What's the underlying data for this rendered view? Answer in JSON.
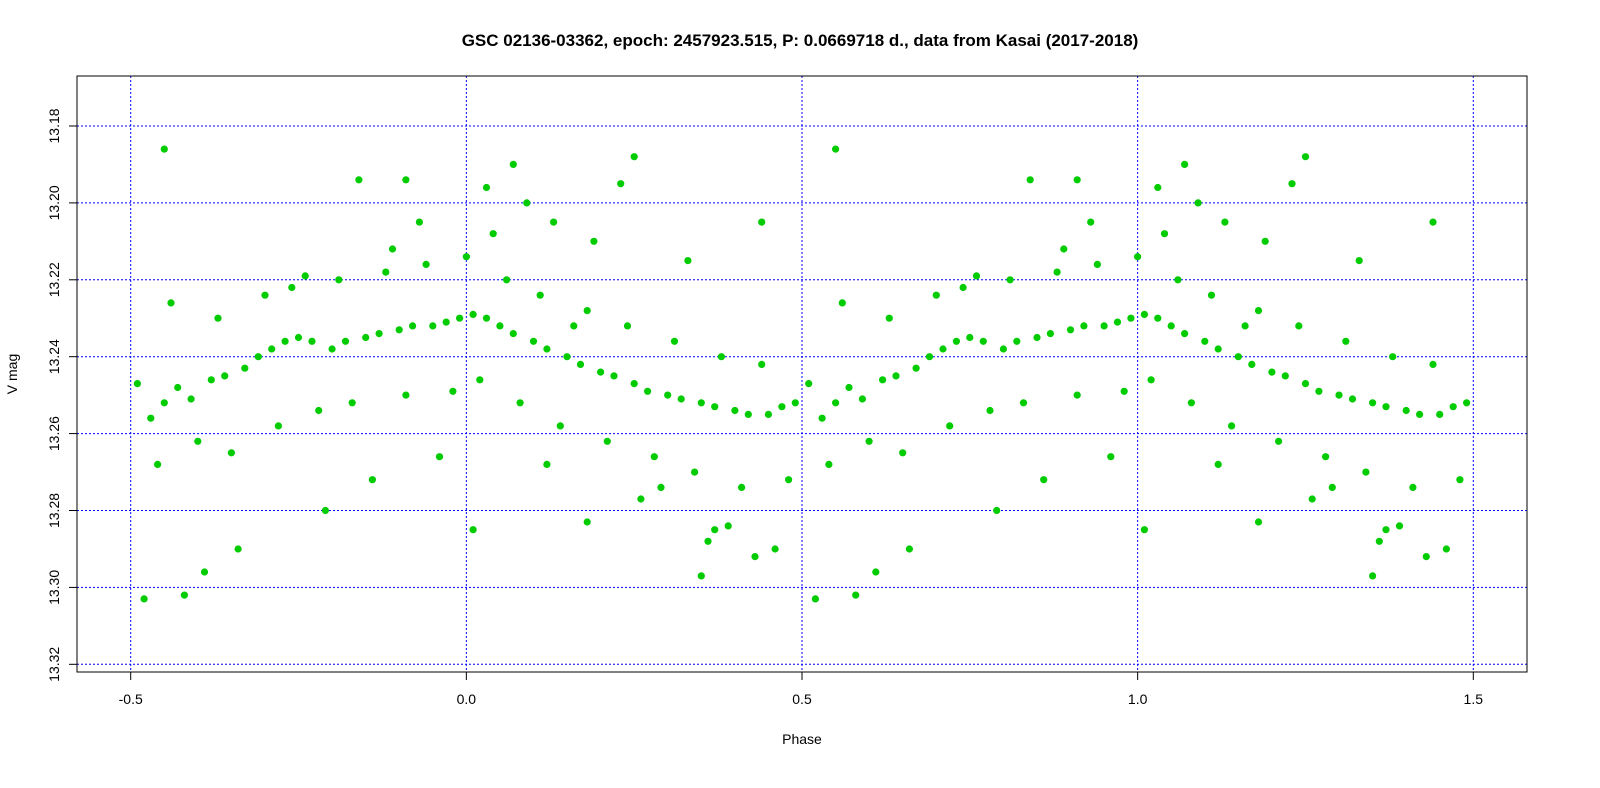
{
  "chart_data": {
    "type": "scatter",
    "title": "GSC 02136-03362, epoch: 2457923.515, P: 0.0669718 d., data from Kasai (2017-2018)",
    "xlabel": "Phase",
    "ylabel": "V mag",
    "xlim": [
      -0.58,
      1.58
    ],
    "ylim": [
      13.322,
      13.167
    ],
    "y_inverted": true,
    "x_ticks": [
      "-0.5",
      "0.0",
      "0.5",
      "1.0",
      "1.5"
    ],
    "x_tick_values": [
      -0.5,
      0.0,
      0.5,
      1.0,
      1.5
    ],
    "y_ticks": [
      "13.18",
      "13.20",
      "13.22",
      "13.24",
      "13.26",
      "13.28",
      "13.30",
      "13.32"
    ],
    "y_tick_values": [
      13.18,
      13.2,
      13.22,
      13.24,
      13.26,
      13.28,
      13.3,
      13.32
    ],
    "grid": true,
    "grid_color": "#0000ff",
    "point_color": "#00cc00",
    "series": [
      {
        "x": [
          -0.49,
          -0.47,
          -0.45,
          -0.43,
          -0.41,
          -0.38,
          -0.36,
          -0.33,
          -0.31,
          -0.29,
          -0.27,
          -0.25,
          -0.23,
          -0.2,
          -0.18,
          -0.15,
          -0.13,
          -0.1,
          -0.08,
          -0.05,
          -0.03,
          -0.01,
          0.01,
          0.03,
          0.05,
          0.07,
          0.1,
          0.12,
          0.15,
          0.17,
          0.2,
          0.22,
          0.25,
          0.27,
          0.3,
          0.32,
          0.35,
          0.37,
          0.4,
          0.42,
          0.45,
          0.47,
          0.49,
          -0.46,
          -0.44,
          -0.4,
          -0.37,
          -0.35,
          -0.3,
          -0.28,
          -0.26,
          -0.22,
          -0.19,
          -0.17,
          -0.12,
          -0.09,
          -0.06,
          -0.02,
          0.0,
          0.02,
          0.06,
          0.08,
          0.11,
          0.14,
          0.18,
          0.21,
          0.24,
          0.28,
          0.31,
          0.34,
          0.38,
          0.41,
          0.44,
          0.48,
          0.03,
          0.09,
          0.13,
          0.19,
          0.23,
          0.07,
          -0.09,
          0.16,
          0.26,
          0.36,
          0.43,
          0.39,
          -0.42,
          -0.34,
          -0.21,
          -0.14,
          -0.04,
          0.04,
          -0.48,
          -0.39,
          0.46,
          0.33,
          -0.24,
          0.12,
          0.29,
          -0.11,
          0.01,
          0.18,
          0.35,
          -0.45,
          0.44,
          0.25,
          -0.07,
          0.37,
          -0.16
        ],
        "y": [
          13.247,
          13.256,
          13.252,
          13.248,
          13.251,
          13.246,
          13.245,
          13.243,
          13.24,
          13.238,
          13.236,
          13.235,
          13.236,
          13.238,
          13.236,
          13.235,
          13.234,
          13.233,
          13.232,
          13.232,
          13.231,
          13.23,
          13.229,
          13.23,
          13.232,
          13.234,
          13.236,
          13.238,
          13.24,
          13.242,
          13.244,
          13.245,
          13.247,
          13.249,
          13.25,
          13.251,
          13.252,
          13.253,
          13.254,
          13.255,
          13.255,
          13.253,
          13.252,
          13.268,
          13.226,
          13.262,
          13.23,
          13.265,
          13.224,
          13.258,
          13.222,
          13.254,
          13.22,
          13.252,
          13.218,
          13.25,
          13.216,
          13.249,
          13.214,
          13.246,
          13.22,
          13.252,
          13.224,
          13.258,
          13.228,
          13.262,
          13.232,
          13.266,
          13.236,
          13.27,
          13.24,
          13.274,
          13.242,
          13.272,
          13.196,
          13.2,
          13.205,
          13.21,
          13.195,
          13.19,
          13.194,
          13.232,
          13.277,
          13.288,
          13.292,
          13.284,
          13.302,
          13.29,
          13.28,
          13.272,
          13.266,
          13.208,
          13.303,
          13.296,
          13.29,
          13.215,
          13.219,
          13.268,
          13.274,
          13.212,
          13.285,
          13.283,
          13.297,
          13.186,
          13.205,
          13.188,
          13.205,
          13.285,
          13.194
        ]
      }
    ],
    "mirrored_copy_offset": 1.0
  }
}
